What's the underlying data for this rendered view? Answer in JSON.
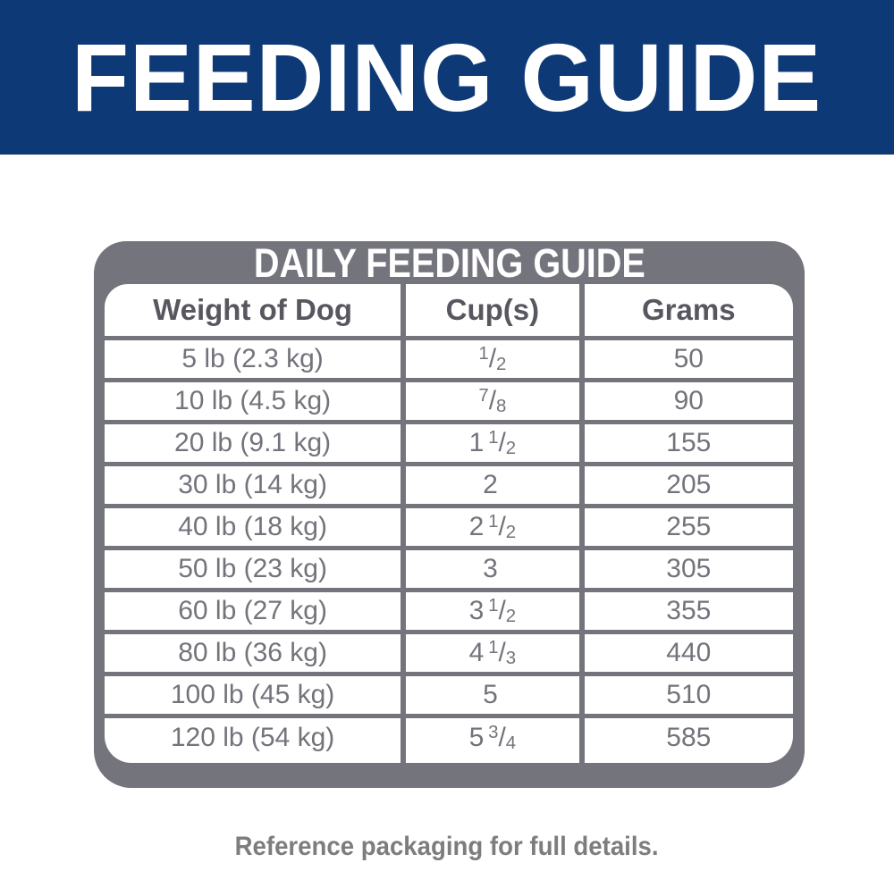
{
  "banner": {
    "title": "FEEDING GUIDE",
    "bg_color": "#0d3a76",
    "text_color": "#ffffff"
  },
  "table": {
    "title": "DAILY FEEDING GUIDE",
    "frame_color": "#74747d",
    "header_text_color": "#57575f",
    "cell_text_color": "#73737b",
    "columns": [
      "Weight of Dog",
      "Cup(s)",
      "Grams"
    ],
    "rows": [
      {
        "weight": "5 lb (2.3 kg)",
        "cups": {
          "text": "1/2",
          "whole": "",
          "num": "1",
          "den": "2"
        },
        "grams": "50"
      },
      {
        "weight": "10 lb (4.5 kg)",
        "cups": {
          "text": "7/8",
          "whole": "",
          "num": "7",
          "den": "8"
        },
        "grams": "90"
      },
      {
        "weight": "20 lb (9.1 kg)",
        "cups": {
          "text": "1 1/2",
          "whole": "1",
          "num": "1",
          "den": "2"
        },
        "grams": "155"
      },
      {
        "weight": "30 lb (14 kg)",
        "cups": {
          "text": "2",
          "whole": "2",
          "num": "",
          "den": ""
        },
        "grams": "205"
      },
      {
        "weight": "40 lb (18 kg)",
        "cups": {
          "text": "2 1/2",
          "whole": "2",
          "num": "1",
          "den": "2"
        },
        "grams": "255"
      },
      {
        "weight": "50 lb (23 kg)",
        "cups": {
          "text": "3",
          "whole": "3",
          "num": "",
          "den": ""
        },
        "grams": "305"
      },
      {
        "weight": "60 lb (27 kg)",
        "cups": {
          "text": "3 1/2",
          "whole": "3",
          "num": "1",
          "den": "2"
        },
        "grams": "355"
      },
      {
        "weight": "80 lb (36 kg)",
        "cups": {
          "text": "4 1/3",
          "whole": "4",
          "num": "1",
          "den": "3"
        },
        "grams": "440"
      },
      {
        "weight": "100 lb (45 kg)",
        "cups": {
          "text": "5",
          "whole": "5",
          "num": "",
          "den": ""
        },
        "grams": "510"
      },
      {
        "weight": "120 lb (54 kg)",
        "cups": {
          "text": "5 3/4",
          "whole": "5",
          "num": "3",
          "den": "4"
        },
        "grams": "585"
      }
    ]
  },
  "footer": {
    "note": "Reference packaging for full details.",
    "text_color": "#7d7d7d"
  }
}
